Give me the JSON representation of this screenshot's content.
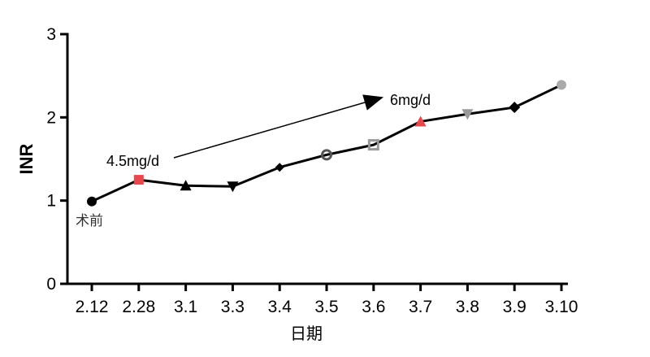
{
  "chart_data": {
    "type": "line",
    "categories": [
      "2.12",
      "2.28",
      "3.1",
      "3.3",
      "3.4",
      "3.5",
      "3.6",
      "3.7",
      "3.8",
      "3.9",
      "3.10"
    ],
    "series": [
      {
        "values": [
          0.99,
          1.25,
          1.18,
          1.17,
          1.4,
          1.55,
          1.67,
          1.95,
          2.04,
          2.12,
          2.39
        ],
        "markers": [
          "circle",
          "square",
          "triangle-up",
          "triangle-down",
          "diamond",
          "circle-open",
          "square-open",
          "triangle-up",
          "triangle-down",
          "diamond",
          "circle"
        ],
        "marker_colors": [
          "#000000",
          "#e8474c",
          "#000000",
          "#000000",
          "#000000",
          "#555555",
          "#999999",
          "#e8474c",
          "#999999",
          "#000000",
          "#aaaaaa"
        ]
      }
    ],
    "xlabel": "日期",
    "ylabel": "INR",
    "ylim": [
      0,
      3
    ],
    "yticks": [
      "0",
      "1",
      "2",
      "3"
    ],
    "grid": false,
    "line_color": "#000000",
    "annotations": {
      "start_label": "术前",
      "dose_start": "4.5mg/d",
      "dose_end": "6mg/d"
    }
  }
}
